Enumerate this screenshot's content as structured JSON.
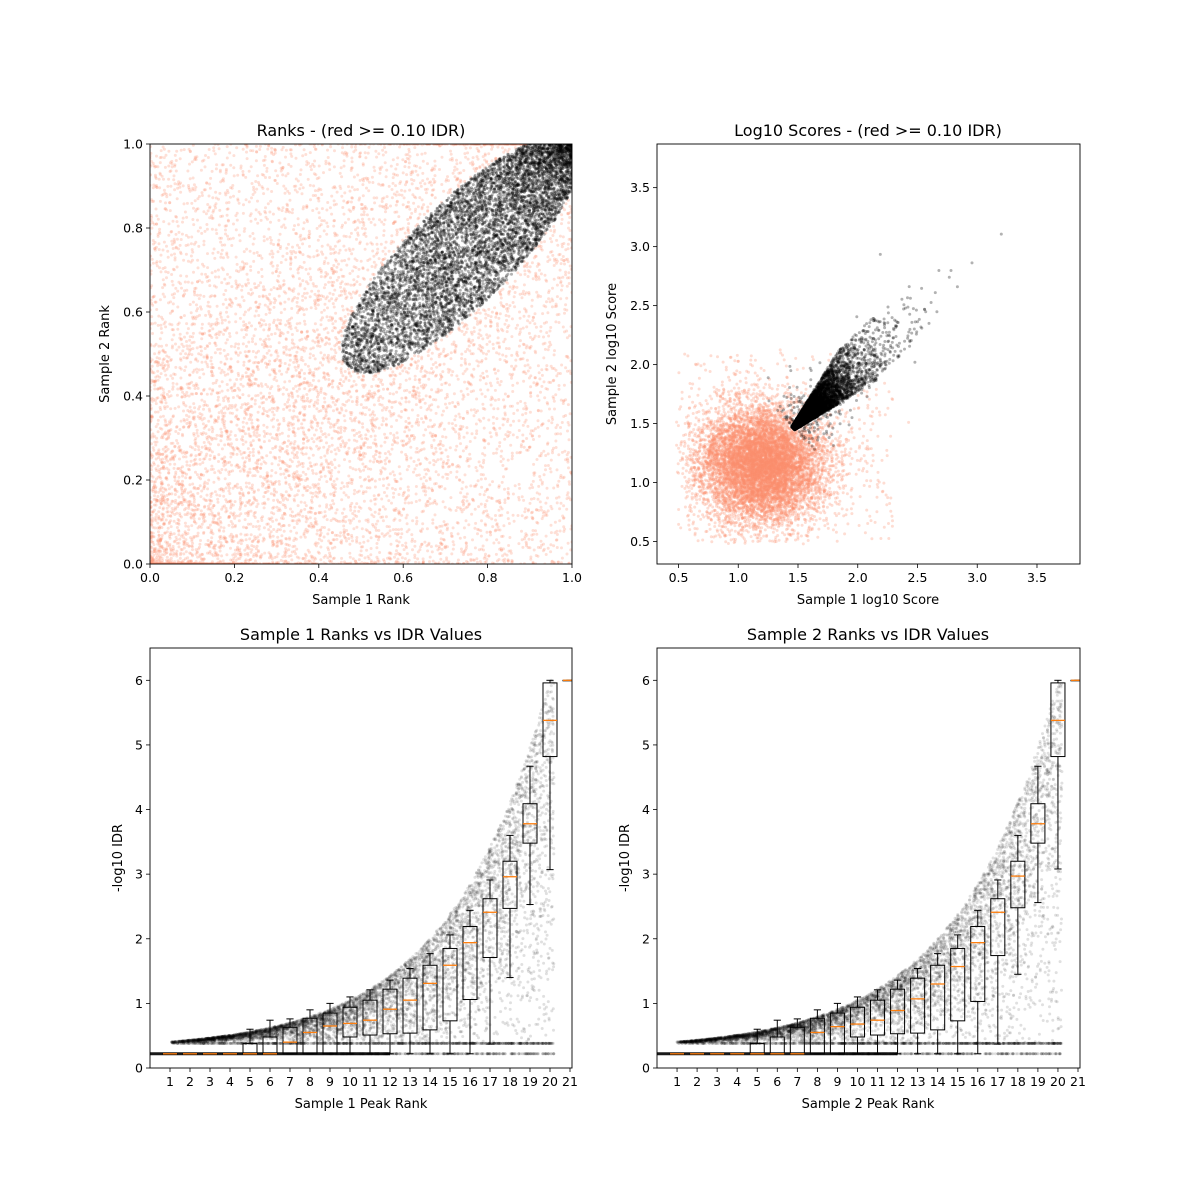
{
  "chart_data": [
    {
      "type": "scatter",
      "title": "Ranks - (red >= 0.10 IDR)",
      "xlabel": "Sample 1 Rank",
      "ylabel": "Sample 2 Rank",
      "xlim": [
        0,
        1
      ],
      "ylim": [
        0,
        1
      ],
      "xticks": [
        "0.0",
        "0.2",
        "0.4",
        "0.6",
        "0.8",
        "1.0"
      ],
      "yticks": [
        "0.0",
        "0.2",
        "0.4",
        "0.6",
        "0.8",
        "1.0"
      ],
      "grid": false,
      "colors": {
        "below_threshold": "#fb8f6e",
        "passing": "#000000"
      }
    },
    {
      "type": "scatter",
      "title": "Log10 Scores - (red >= 0.10 IDR)",
      "xlabel": "Sample 1 log10 Score",
      "ylabel": "Sample 2 log10 Score",
      "xlim": [
        0.32,
        3.86
      ],
      "ylim": [
        0.31,
        3.87
      ],
      "xticks": [
        "0.5",
        "1.0",
        "1.5",
        "2.0",
        "2.5",
        "3.0",
        "3.5"
      ],
      "yticks": [
        "0.5",
        "1.0",
        "1.5",
        "2.0",
        "2.5",
        "3.0",
        "3.5"
      ],
      "grid": false,
      "colors": {
        "below_threshold": "#fb8f6e",
        "passing": "#000000"
      }
    },
    {
      "type": "box",
      "title": "Sample 1 Ranks vs IDR Values",
      "xlabel": "Sample 1 Peak Rank",
      "ylabel": "-log10 IDR",
      "xlim": [
        0,
        21.1
      ],
      "ylim": [
        0,
        6.5
      ],
      "categories": [
        "1",
        "2",
        "3",
        "4",
        "5",
        "6",
        "7",
        "8",
        "9",
        "10",
        "11",
        "12",
        "13",
        "14",
        "15",
        "16",
        "17",
        "18",
        "19",
        "20",
        "21"
      ],
      "yticks": [
        "0",
        "1",
        "2",
        "3",
        "4",
        "5",
        "6"
      ],
      "box_stats_columns": [
        "whisker_low",
        "q1",
        "median",
        "q3",
        "whisker_high"
      ],
      "box_stats": [
        [
          0.22,
          0.22,
          0.22,
          0.22,
          0.22
        ],
        [
          0.22,
          0.22,
          0.22,
          0.22,
          0.22
        ],
        [
          0.22,
          0.22,
          0.22,
          0.22,
          0.22
        ],
        [
          0.22,
          0.22,
          0.22,
          0.22,
          0.22
        ],
        [
          0.22,
          0.22,
          0.22,
          0.38,
          0.6
        ],
        [
          0.22,
          0.22,
          0.22,
          0.48,
          0.74
        ],
        [
          0.22,
          0.22,
          0.4,
          0.63,
          0.76
        ],
        [
          0.22,
          0.22,
          0.55,
          0.77,
          0.9
        ],
        [
          0.22,
          0.22,
          0.65,
          0.85,
          1.0
        ],
        [
          0.22,
          0.48,
          0.69,
          0.94,
          1.1
        ],
        [
          0.22,
          0.51,
          0.74,
          1.05,
          1.21
        ],
        [
          0.22,
          0.53,
          0.91,
          1.22,
          1.36
        ],
        [
          0.22,
          0.54,
          1.05,
          1.39,
          1.54
        ],
        [
          0.22,
          0.59,
          1.31,
          1.59,
          1.77
        ],
        [
          0.22,
          0.73,
          1.59,
          1.85,
          2.06
        ],
        [
          0.22,
          1.06,
          1.94,
          2.19,
          2.44
        ],
        [
          0.37,
          1.71,
          2.41,
          2.62,
          2.91
        ],
        [
          1.4,
          2.47,
          2.96,
          3.2,
          3.6
        ],
        [
          2.53,
          3.48,
          3.78,
          4.09,
          4.67
        ],
        [
          3.07,
          4.82,
          5.38,
          5.96,
          6.0
        ],
        [
          6.0,
          6.0,
          6.0,
          6.0,
          6.0
        ]
      ],
      "grid": false,
      "colors": {
        "points": "#000000",
        "median": "#ff7f0e"
      }
    },
    {
      "type": "box",
      "title": "Sample 2 Ranks vs IDR Values",
      "xlabel": "Sample 2 Peak Rank",
      "ylabel": "-log10 IDR",
      "xlim": [
        0,
        21.1
      ],
      "ylim": [
        0,
        6.5
      ],
      "categories": [
        "1",
        "2",
        "3",
        "4",
        "5",
        "6",
        "7",
        "8",
        "9",
        "10",
        "11",
        "12",
        "13",
        "14",
        "15",
        "16",
        "17",
        "18",
        "19",
        "20",
        "21"
      ],
      "yticks": [
        "0",
        "1",
        "2",
        "3",
        "4",
        "5",
        "6"
      ],
      "box_stats_columns": [
        "whisker_low",
        "q1",
        "median",
        "q3",
        "whisker_high"
      ],
      "box_stats": [
        [
          0.22,
          0.22,
          0.22,
          0.22,
          0.22
        ],
        [
          0.22,
          0.22,
          0.22,
          0.22,
          0.22
        ],
        [
          0.22,
          0.22,
          0.22,
          0.22,
          0.22
        ],
        [
          0.22,
          0.22,
          0.22,
          0.22,
          0.22
        ],
        [
          0.22,
          0.22,
          0.22,
          0.38,
          0.6
        ],
        [
          0.22,
          0.22,
          0.22,
          0.48,
          0.74
        ],
        [
          0.22,
          0.22,
          0.22,
          0.63,
          0.76
        ],
        [
          0.22,
          0.22,
          0.55,
          0.77,
          0.9
        ],
        [
          0.22,
          0.22,
          0.64,
          0.85,
          1.0
        ],
        [
          0.22,
          0.48,
          0.68,
          0.94,
          1.1
        ],
        [
          0.22,
          0.51,
          0.74,
          1.05,
          1.21
        ],
        [
          0.22,
          0.53,
          0.89,
          1.22,
          1.36
        ],
        [
          0.22,
          0.54,
          1.07,
          1.39,
          1.54
        ],
        [
          0.22,
          0.59,
          1.3,
          1.59,
          1.77
        ],
        [
          0.22,
          0.73,
          1.57,
          1.85,
          2.06
        ],
        [
          0.22,
          1.03,
          1.94,
          2.19,
          2.44
        ],
        [
          0.37,
          1.74,
          2.41,
          2.62,
          2.91
        ],
        [
          1.45,
          2.48,
          2.97,
          3.2,
          3.6
        ],
        [
          2.56,
          3.48,
          3.78,
          4.09,
          4.67
        ],
        [
          3.08,
          4.82,
          5.38,
          5.96,
          6.0
        ],
        [
          6.0,
          6.0,
          6.0,
          6.0,
          6.0
        ]
      ],
      "grid": false,
      "colors": {
        "points": "#000000",
        "median": "#ff7f0e"
      }
    }
  ]
}
